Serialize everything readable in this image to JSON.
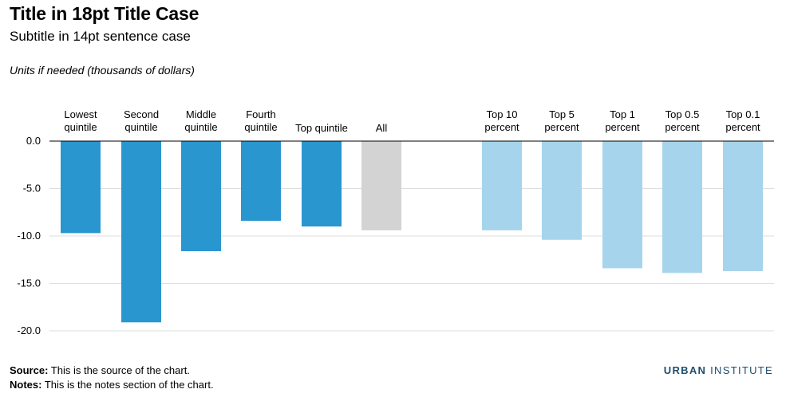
{
  "chart_data": {
    "type": "bar",
    "title": "Title in 18pt Title Case",
    "subtitle": "Subtitle in 14pt sentence case",
    "ylabel": "Units if needed (thousands of dollars)",
    "ylim": [
      -20,
      0
    ],
    "yticks": [
      "0.0",
      "-5.0",
      "-10.0",
      "-15.0",
      "-20.0"
    ],
    "ytick_values": [
      0,
      -5,
      -10,
      -15,
      -20
    ],
    "grid": true,
    "categories": [
      [
        "Lowest",
        "quintile"
      ],
      [
        "Second",
        "quintile"
      ],
      [
        "Middle",
        "quintile"
      ],
      [
        "Fourth",
        "quintile"
      ],
      [
        "Top quintile"
      ],
      [
        "All"
      ],
      [
        "Top 10",
        "percent"
      ],
      [
        "Top 5",
        "percent"
      ],
      [
        "Top 1",
        "percent"
      ],
      [
        "Top 0.5",
        "percent"
      ],
      [
        "Top 0.1",
        "percent"
      ]
    ],
    "values": [
      -9.7,
      -19.1,
      -11.6,
      -8.4,
      -9.0,
      -9.4,
      -9.4,
      -10.4,
      -13.4,
      -13.9,
      -13.7
    ],
    "colors": [
      "#2a96d0",
      "#2a96d0",
      "#2a96d0",
      "#2a96d0",
      "#2a96d0",
      "#d3d3d3",
      "#a6d4ec",
      "#a6d4ec",
      "#a6d4ec",
      "#a6d4ec",
      "#a6d4ec"
    ]
  },
  "footer": {
    "source_label": "Source:",
    "source_text": " This is the source of the chart.",
    "notes_label": "Notes:",
    "notes_text": " This is the notes section of the chart."
  },
  "brand": {
    "word1": "URBAN",
    "word2": " INSTITUTE",
    "color": "#1f4e6e"
  }
}
